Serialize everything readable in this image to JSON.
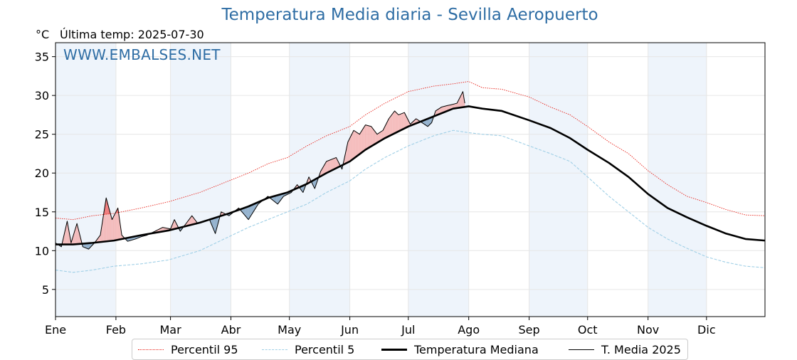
{
  "header": {
    "title": "Temperatura Media diaria - Sevilla Aeropuerto",
    "unit": "°C",
    "last_temp": "Última temp: 2025-07-30",
    "watermark": "WWW.EMBALSES.NET"
  },
  "colors": {
    "p95": "#e8231a",
    "p5": "#9fcfe6",
    "median": "#000000",
    "current": "#000000",
    "fill_above": "#f4b6b6",
    "fill_above_p95": "#ee7172",
    "fill_below": "#8aabc9",
    "month_band": "#eef4fb",
    "title": "#2e6da4"
  },
  "legend": [
    {
      "label": "Percentil 95",
      "style": "p95"
    },
    {
      "label": "Percentil 5",
      "style": "p5"
    },
    {
      "label": "Temperatura Mediana",
      "style": "median"
    },
    {
      "label": "T. Media 2025",
      "style": "current"
    }
  ],
  "chart_data": {
    "type": "line",
    "title": "Temperatura Media diaria - Sevilla Aeropuerto",
    "xlabel": "",
    "ylabel": "°C",
    "x_unit": "day of year",
    "xlim": [
      1,
      365
    ],
    "ylim": [
      1.5,
      36.8
    ],
    "yticks": [
      5,
      10,
      15,
      20,
      25,
      30,
      35
    ],
    "months": [
      {
        "label": "Ene",
        "day": 1
      },
      {
        "label": "Feb",
        "day": 32
      },
      {
        "label": "Mar",
        "day": 60
      },
      {
        "label": "Abr",
        "day": 91
      },
      {
        "label": "May",
        "day": 121
      },
      {
        "label": "Jun",
        "day": 152
      },
      {
        "label": "Jul",
        "day": 182
      },
      {
        "label": "Ago",
        "day": 213
      },
      {
        "label": "Sep",
        "day": 244
      },
      {
        "label": "Oct",
        "day": 274
      },
      {
        "label": "Nov",
        "day": 305
      },
      {
        "label": "Dic",
        "day": 335
      }
    ],
    "grid": true,
    "legend_position": "bottom",
    "series": [
      {
        "name": "Percentil 95",
        "key": "p95",
        "points": [
          [
            1,
            14.2
          ],
          [
            10,
            14.0
          ],
          [
            20,
            14.5
          ],
          [
            31,
            14.8
          ],
          [
            45,
            15.5
          ],
          [
            59,
            16.3
          ],
          [
            75,
            17.5
          ],
          [
            90,
            19.0
          ],
          [
            100,
            20.0
          ],
          [
            110,
            21.2
          ],
          [
            120,
            22.0
          ],
          [
            130,
            23.5
          ],
          [
            140,
            24.8
          ],
          [
            152,
            26.0
          ],
          [
            160,
            27.5
          ],
          [
            170,
            29.0
          ],
          [
            182,
            30.5
          ],
          [
            195,
            31.2
          ],
          [
            205,
            31.5
          ],
          [
            213,
            31.8
          ],
          [
            220,
            31.0
          ],
          [
            230,
            30.8
          ],
          [
            244,
            29.8
          ],
          [
            255,
            28.5
          ],
          [
            265,
            27.5
          ],
          [
            274,
            26.0
          ],
          [
            285,
            24.0
          ],
          [
            295,
            22.5
          ],
          [
            305,
            20.3
          ],
          [
            315,
            18.5
          ],
          [
            325,
            17.0
          ],
          [
            335,
            16.2
          ],
          [
            345,
            15.3
          ],
          [
            355,
            14.6
          ],
          [
            365,
            14.5
          ]
        ]
      },
      {
        "name": "Percentil 5",
        "key": "p5",
        "points": [
          [
            1,
            7.5
          ],
          [
            10,
            7.2
          ],
          [
            20,
            7.5
          ],
          [
            31,
            8.0
          ],
          [
            45,
            8.3
          ],
          [
            59,
            8.8
          ],
          [
            75,
            10.0
          ],
          [
            90,
            11.8
          ],
          [
            100,
            13.0
          ],
          [
            110,
            14.0
          ],
          [
            120,
            15.0
          ],
          [
            130,
            16.0
          ],
          [
            140,
            17.5
          ],
          [
            152,
            19.0
          ],
          [
            160,
            20.5
          ],
          [
            170,
            22.0
          ],
          [
            182,
            23.5
          ],
          [
            195,
            24.8
          ],
          [
            205,
            25.5
          ],
          [
            213,
            25.2
          ],
          [
            220,
            25.0
          ],
          [
            230,
            24.8
          ],
          [
            244,
            23.5
          ],
          [
            255,
            22.5
          ],
          [
            265,
            21.5
          ],
          [
            274,
            19.5
          ],
          [
            285,
            17.0
          ],
          [
            295,
            15.0
          ],
          [
            305,
            13.0
          ],
          [
            315,
            11.5
          ],
          [
            325,
            10.3
          ],
          [
            335,
            9.2
          ],
          [
            345,
            8.5
          ],
          [
            355,
            8.0
          ],
          [
            365,
            7.8
          ]
        ]
      },
      {
        "name": "Temperatura Mediana",
        "key": "median",
        "points": [
          [
            1,
            10.8
          ],
          [
            10,
            10.8
          ],
          [
            20,
            11.0
          ],
          [
            31,
            11.3
          ],
          [
            45,
            12.0
          ],
          [
            59,
            12.6
          ],
          [
            75,
            13.6
          ],
          [
            90,
            14.8
          ],
          [
            100,
            15.7
          ],
          [
            110,
            16.8
          ],
          [
            120,
            17.5
          ],
          [
            130,
            18.6
          ],
          [
            140,
            20.0
          ],
          [
            152,
            21.5
          ],
          [
            160,
            23.0
          ],
          [
            170,
            24.5
          ],
          [
            182,
            26.0
          ],
          [
            195,
            27.3
          ],
          [
            205,
            28.3
          ],
          [
            213,
            28.6
          ],
          [
            220,
            28.3
          ],
          [
            230,
            28.0
          ],
          [
            244,
            26.8
          ],
          [
            255,
            25.8
          ],
          [
            265,
            24.5
          ],
          [
            274,
            23.0
          ],
          [
            285,
            21.3
          ],
          [
            295,
            19.5
          ],
          [
            305,
            17.3
          ],
          [
            315,
            15.5
          ],
          [
            325,
            14.3
          ],
          [
            335,
            13.2
          ],
          [
            345,
            12.2
          ],
          [
            355,
            11.5
          ],
          [
            365,
            11.3
          ]
        ]
      },
      {
        "name": "T. Media 2025",
        "key": "current",
        "points": [
          [
            1,
            11.0
          ],
          [
            4,
            10.5
          ],
          [
            7,
            13.8
          ],
          [
            9,
            11.0
          ],
          [
            12,
            13.5
          ],
          [
            15,
            10.5
          ],
          [
            18,
            10.2
          ],
          [
            21,
            11.0
          ],
          [
            24,
            12.0
          ],
          [
            27,
            16.8
          ],
          [
            30,
            14.0
          ],
          [
            33,
            15.5
          ],
          [
            35,
            12.0
          ],
          [
            38,
            11.2
          ],
          [
            42,
            11.5
          ],
          [
            45,
            11.8
          ],
          [
            48,
            12.0
          ],
          [
            52,
            12.5
          ],
          [
            56,
            13.0
          ],
          [
            60,
            12.8
          ],
          [
            62,
            14.0
          ],
          [
            65,
            12.5
          ],
          [
            68,
            13.5
          ],
          [
            71,
            14.5
          ],
          [
            74,
            13.5
          ],
          [
            77,
            13.8
          ],
          [
            80,
            14.0
          ],
          [
            83,
            12.2
          ],
          [
            86,
            15.0
          ],
          [
            90,
            14.5
          ],
          [
            95,
            15.5
          ],
          [
            100,
            14.0
          ],
          [
            105,
            16.0
          ],
          [
            110,
            17.0
          ],
          [
            115,
            16.0
          ],
          [
            118,
            17.0
          ],
          [
            122,
            17.5
          ],
          [
            125,
            18.5
          ],
          [
            128,
            17.5
          ],
          [
            131,
            19.5
          ],
          [
            134,
            18.0
          ],
          [
            137,
            20.2
          ],
          [
            140,
            21.5
          ],
          [
            145,
            22.0
          ],
          [
            148,
            20.5
          ],
          [
            151,
            24.0
          ],
          [
            154,
            25.5
          ],
          [
            157,
            25.0
          ],
          [
            160,
            26.2
          ],
          [
            163,
            26.0
          ],
          [
            166,
            25.0
          ],
          [
            169,
            25.5
          ],
          [
            172,
            27.0
          ],
          [
            175,
            28.0
          ],
          [
            177,
            27.5
          ],
          [
            180,
            27.8
          ],
          [
            183,
            26.3
          ],
          [
            186,
            27.0
          ],
          [
            189,
            26.5
          ],
          [
            192,
            26.0
          ],
          [
            194,
            26.5
          ],
          [
            196,
            28.0
          ],
          [
            199,
            28.5
          ],
          [
            202,
            28.7
          ],
          [
            204,
            28.8
          ],
          [
            207,
            29.0
          ],
          [
            210,
            30.5
          ],
          [
            211,
            29.0
          ]
        ]
      }
    ]
  }
}
